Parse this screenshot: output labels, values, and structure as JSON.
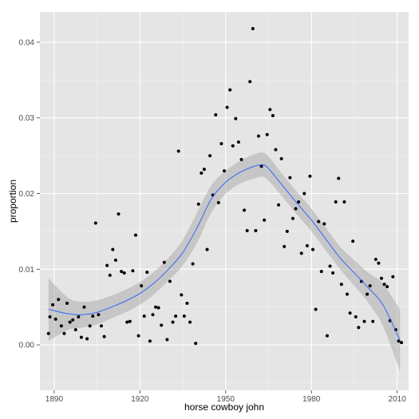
{
  "chart_data": {
    "type": "scatter",
    "xlabel": "horse cowboy john",
    "ylabel": "proportion",
    "xlim": [
      1885,
      2014
    ],
    "ylim": [
      -0.006,
      0.044
    ],
    "x_ticks": [
      1890,
      1920,
      1950,
      1980,
      2010
    ],
    "y_ticks": [
      0.0,
      0.01,
      0.02,
      0.03,
      0.04
    ],
    "y_tick_labels": [
      "0.00",
      "0.01",
      "0.02",
      "0.03",
      "0.04"
    ],
    "grid": true,
    "legend": "none",
    "colors": {
      "panel": "#e5e5e5",
      "grid_major": "#ffffff",
      "grid_minor": "#f2f2f2",
      "points": "#000000",
      "smooth_line": "#3366ff",
      "ribbon": "#999999"
    },
    "points": [
      [
        1888,
        0.0015
      ],
      [
        1888.5,
        0.0037
      ],
      [
        1889.5,
        0.0053
      ],
      [
        1890.5,
        0.0034
      ],
      [
        1891.5,
        0.006
      ],
      [
        1892.5,
        0.0025
      ],
      [
        1893.5,
        0.0015
      ],
      [
        1894.5,
        0.0055
      ],
      [
        1895.5,
        0.003
      ],
      [
        1896.5,
        0.0033
      ],
      [
        1897.5,
        0.002
      ],
      [
        1898.5,
        0.0037
      ],
      [
        1899.5,
        0.001
      ],
      [
        1900.5,
        0.005
      ],
      [
        1901.5,
        0.0008
      ],
      [
        1902.5,
        0.0025
      ],
      [
        1903.5,
        0.0038
      ],
      [
        1904.5,
        0.0161
      ],
      [
        1905.5,
        0.004
      ],
      [
        1906.5,
        0.0025
      ],
      [
        1907.5,
        0.0011
      ],
      [
        1908.5,
        0.0105
      ],
      [
        1909.5,
        0.0092
      ],
      [
        1910.5,
        0.0126
      ],
      [
        1911.5,
        0.0112
      ],
      [
        1912.5,
        0.0173
      ],
      [
        1913.5,
        0.0097
      ],
      [
        1914.5,
        0.0095
      ],
      [
        1915.5,
        0.003
      ],
      [
        1916.5,
        0.0031
      ],
      [
        1917.5,
        0.0098
      ],
      [
        1918.5,
        0.0145
      ],
      [
        1919.5,
        0.0012
      ],
      [
        1920.5,
        0.0078
      ],
      [
        1921.5,
        0.0038
      ],
      [
        1922.5,
        0.0096
      ],
      [
        1923.5,
        0.0005
      ],
      [
        1924.5,
        0.004
      ],
      [
        1925.5,
        0.005
      ],
      [
        1926.5,
        0.0049
      ],
      [
        1927.5,
        0.0026
      ],
      [
        1928.5,
        0.0109
      ],
      [
        1929.5,
        0.0007
      ],
      [
        1930.5,
        0.0084
      ],
      [
        1931.5,
        0.003
      ],
      [
        1932.5,
        0.0038
      ],
      [
        1933.5,
        0.0256
      ],
      [
        1934.5,
        0.0066
      ],
      [
        1935.5,
        0.0038
      ],
      [
        1936.5,
        0.0055
      ],
      [
        1937.5,
        0.003
      ],
      [
        1938.5,
        0.0107
      ],
      [
        1939.5,
        0.0002
      ],
      [
        1940.5,
        0.0186
      ],
      [
        1941.5,
        0.0227
      ],
      [
        1942.5,
        0.0232
      ],
      [
        1943.5,
        0.0126
      ],
      [
        1944.5,
        0.025
      ],
      [
        1945.5,
        0.0198
      ],
      [
        1946.5,
        0.0304
      ],
      [
        1947.5,
        0.0188
      ],
      [
        1948.5,
        0.0266
      ],
      [
        1949.5,
        0.023
      ],
      [
        1950.5,
        0.0314
      ],
      [
        1951.5,
        0.0337
      ],
      [
        1952.5,
        0.0263
      ],
      [
        1953.5,
        0.0299
      ],
      [
        1954.5,
        0.0268
      ],
      [
        1955.5,
        0.0245
      ],
      [
        1956.5,
        0.0178
      ],
      [
        1957.5,
        0.0151
      ],
      [
        1958.5,
        0.0348
      ],
      [
        1959.5,
        0.0418
      ],
      [
        1960.5,
        0.0151
      ],
      [
        1961.5,
        0.0276
      ],
      [
        1962.5,
        0.0236
      ],
      [
        1963.5,
        0.0165
      ],
      [
        1964.5,
        0.0278
      ],
      [
        1965.5,
        0.0311
      ],
      [
        1966.5,
        0.0303
      ],
      [
        1967.5,
        0.0258
      ],
      [
        1968.5,
        0.0185
      ],
      [
        1969.5,
        0.0246
      ],
      [
        1970.5,
        0.013
      ],
      [
        1971.5,
        0.015
      ],
      [
        1972.5,
        0.0221
      ],
      [
        1973.5,
        0.0167
      ],
      [
        1974.5,
        0.018
      ],
      [
        1975.5,
        0.0189
      ],
      [
        1976.5,
        0.0121
      ],
      [
        1977.5,
        0.02
      ],
      [
        1978.5,
        0.0131
      ],
      [
        1979.5,
        0.0223
      ],
      [
        1980.5,
        0.0126
      ],
      [
        1981.5,
        0.0047
      ],
      [
        1982.5,
        0.0163
      ],
      [
        1983.5,
        0.0097
      ],
      [
        1984.5,
        0.016
      ],
      [
        1985.5,
        0.0012
      ],
      [
        1986.5,
        0.0104
      ],
      [
        1987.5,
        0.0095
      ],
      [
        1988.5,
        0.0189
      ],
      [
        1989.5,
        0.022
      ],
      [
        1990.5,
        0.008
      ],
      [
        1991.5,
        0.0189
      ],
      [
        1992.5,
        0.0067
      ],
      [
        1993.5,
        0.0042
      ],
      [
        1994.5,
        0.0137
      ],
      [
        1995.5,
        0.0037
      ],
      [
        1996.5,
        0.0023
      ],
      [
        1997.5,
        0.0084
      ],
      [
        1998.5,
        0.0031
      ],
      [
        1999.5,
        0.0067
      ],
      [
        2000.5,
        0.0078
      ],
      [
        2001.5,
        0.0031
      ],
      [
        2002.5,
        0.0113
      ],
      [
        2003.5,
        0.0108
      ],
      [
        2004.5,
        0.0088
      ],
      [
        2005.5,
        0.008
      ],
      [
        2006.5,
        0.0077
      ],
      [
        2007.5,
        0.0032
      ],
      [
        2008.5,
        0.009
      ],
      [
        2009.5,
        0.002
      ],
      [
        2010.5,
        0.0005
      ],
      [
        2011.5,
        0.0003
      ]
    ],
    "smooth": {
      "x": [
        1888,
        1895,
        1900,
        1905,
        1910,
        1915,
        1920,
        1925,
        1930,
        1935,
        1940,
        1945,
        1950,
        1955,
        1960,
        1963,
        1965,
        1970,
        1975,
        1980,
        1985,
        1990,
        1995,
        2000,
        2005,
        2011
      ],
      "y": [
        0.0047,
        0.0041,
        0.004,
        0.0043,
        0.005,
        0.0058,
        0.0068,
        0.0082,
        0.01,
        0.0122,
        0.0155,
        0.0193,
        0.0215,
        0.0228,
        0.0236,
        0.0238,
        0.0233,
        0.021,
        0.0187,
        0.0165,
        0.014,
        0.0115,
        0.0095,
        0.0075,
        0.0053,
        0.0006
      ],
      "lower": [
        0.0005,
        0.002,
        0.0023,
        0.0027,
        0.0035,
        0.0043,
        0.0053,
        0.0067,
        0.0085,
        0.0105,
        0.0135,
        0.0175,
        0.02,
        0.0213,
        0.022,
        0.0222,
        0.0217,
        0.0195,
        0.0172,
        0.015,
        0.0125,
        0.01,
        0.0078,
        0.0055,
        0.0025,
        -0.0035
      ],
      "upper": [
        0.0088,
        0.0062,
        0.0057,
        0.0059,
        0.0065,
        0.0073,
        0.0083,
        0.0097,
        0.0115,
        0.0139,
        0.0175,
        0.0211,
        0.023,
        0.0243,
        0.0252,
        0.0254,
        0.0249,
        0.0225,
        0.0202,
        0.018,
        0.0155,
        0.013,
        0.0112,
        0.0095,
        0.0081,
        0.0047
      ]
    }
  }
}
